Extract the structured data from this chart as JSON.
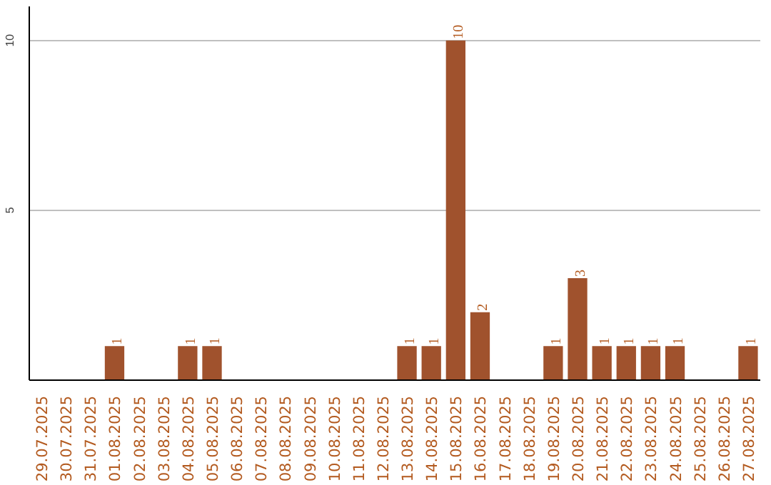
{
  "chart_data": {
    "type": "bar",
    "categories": [
      "29.07.2025",
      "30.07.2025",
      "31.07.2025",
      "01.08.2025",
      "02.08.2025",
      "03.08.2025",
      "04.08.2025",
      "05.08.2025",
      "06.08.2025",
      "07.08.2025",
      "08.08.2025",
      "09.08.2025",
      "10.08.2025",
      "11.08.2025",
      "12.08.2025",
      "13.08.2025",
      "14.08.2025",
      "15.08.2025",
      "16.08.2025",
      "17.08.2025",
      "18.08.2025",
      "19.08.2025",
      "20.08.2025",
      "21.08.2025",
      "22.08.2025",
      "23.08.2025",
      "24.08.2025",
      "25.08.2025",
      "26.08.2025",
      "27.08.2025"
    ],
    "values": [
      0,
      0,
      0,
      1,
      0,
      0,
      1,
      1,
      0,
      0,
      0,
      0,
      0,
      0,
      0,
      1,
      1,
      10,
      2,
      0,
      0,
      1,
      3,
      1,
      1,
      1,
      1,
      0,
      0,
      1
    ],
    "value_labels": [
      null,
      null,
      null,
      "1",
      null,
      null,
      "1",
      "1",
      null,
      null,
      null,
      null,
      null,
      null,
      null,
      "1",
      "1",
      "10",
      "2",
      null,
      null,
      "1",
      "3",
      "1",
      "1",
      "1",
      "1",
      null,
      null,
      "1"
    ],
    "color": "#a0522d",
    "ylim": [
      0,
      11
    ],
    "yticks": [
      5,
      10
    ],
    "grid": "y"
  }
}
